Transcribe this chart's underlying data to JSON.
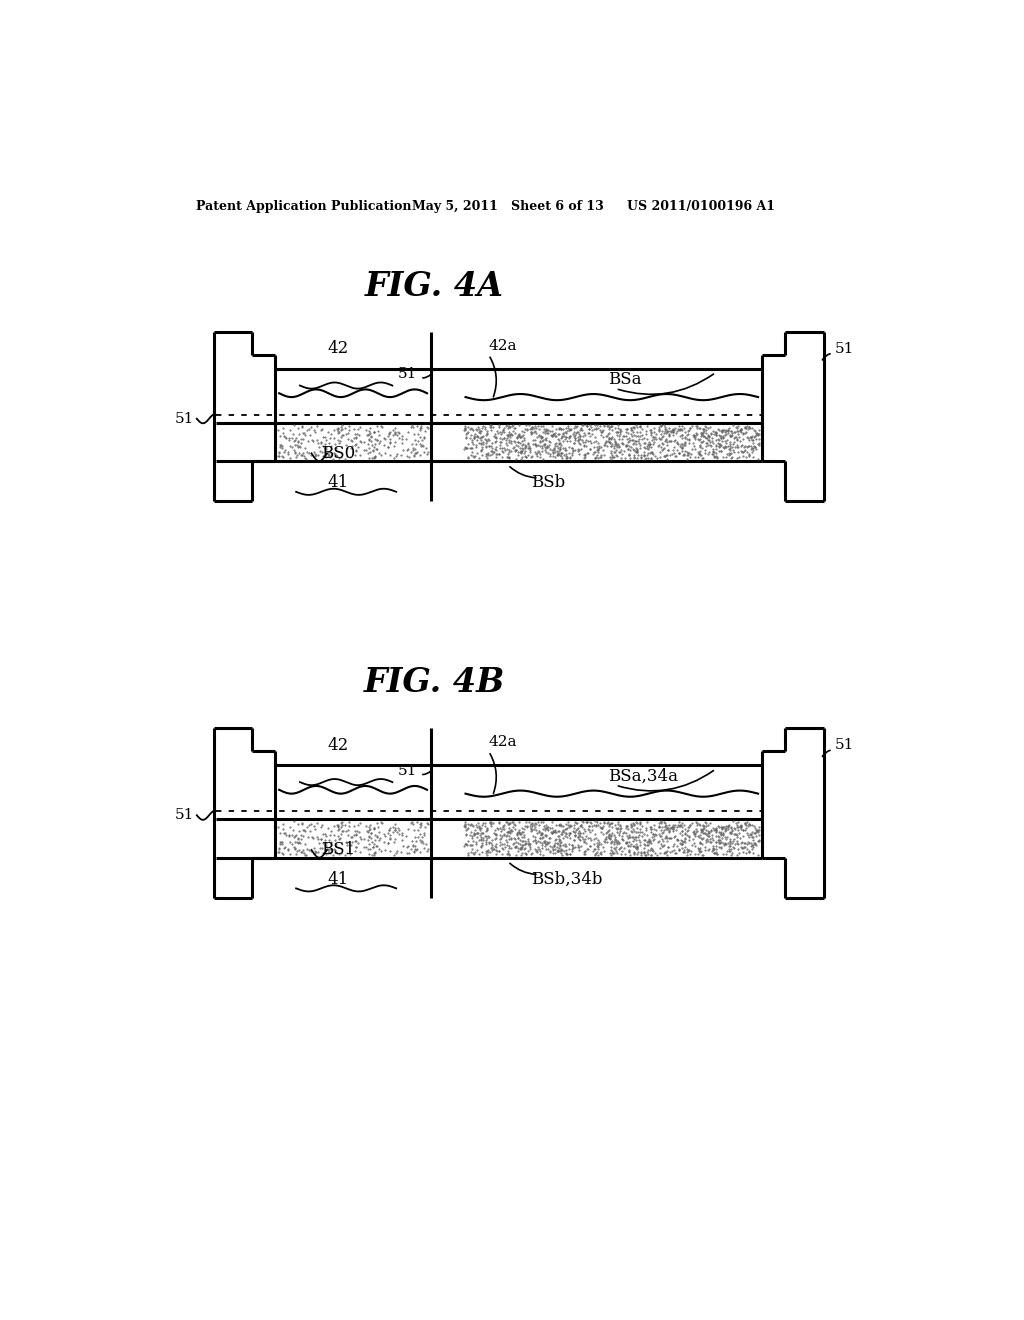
{
  "bg_color": "#ffffff",
  "header_left": "Patent Application Publication",
  "header_mid": "May 5, 2011   Sheet 6 of 13",
  "header_right": "US 2011/0100196 A1",
  "fig4a_title": "FIG. 4A",
  "fig4b_title": "FIG. 4B"
}
